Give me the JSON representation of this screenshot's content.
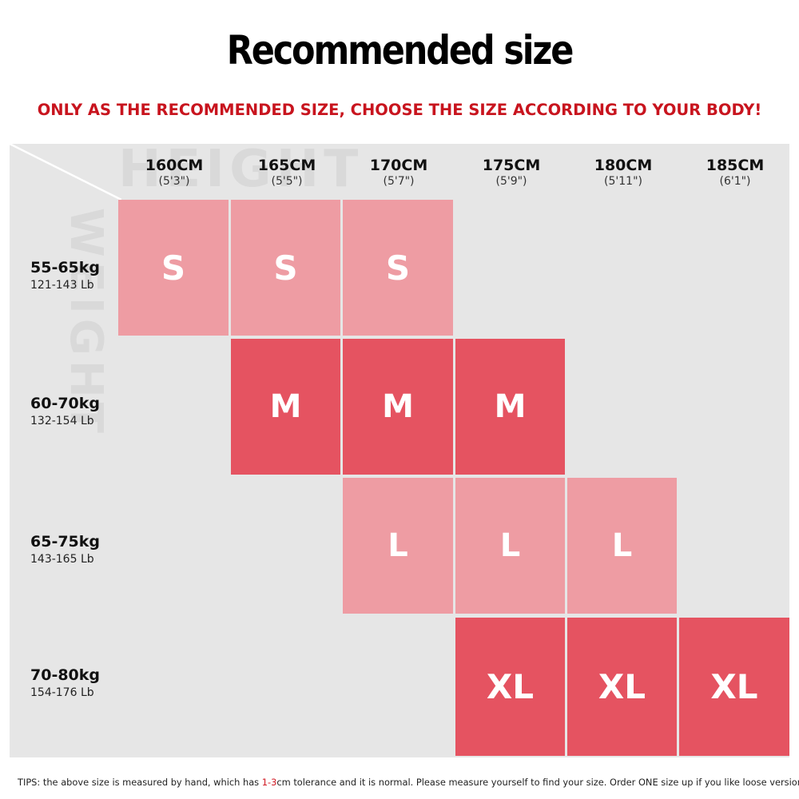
{
  "title": "Recommended size",
  "subtitle": "ONLY AS THE RECOMMENDED SIZE, CHOOSE THE SIZE ACCORDING TO YOUR BODY!",
  "watermarks": {
    "height": "HEIGHT",
    "weight": "WEIGHT"
  },
  "colors": {
    "light": "#ee9ca3",
    "dark": "#e55361",
    "empty": "#e6e6e6",
    "accent": "#c8141e"
  },
  "columns": [
    {
      "cm": "160CM",
      "ft": "(5'3\")"
    },
    {
      "cm": "165CM",
      "ft": "(5'5\")"
    },
    {
      "cm": "170CM",
      "ft": "(5'7\")"
    },
    {
      "cm": "175CM",
      "ft": "(5'9\")"
    },
    {
      "cm": "180CM",
      "ft": "(5'11\")"
    },
    {
      "cm": "185CM",
      "ft": "(6'1\")"
    }
  ],
  "rows": [
    {
      "kg": "55-65kg",
      "lb": "121-143 Lb"
    },
    {
      "kg": "60-70kg",
      "lb": "132-154 Lb"
    },
    {
      "kg": "65-75kg",
      "lb": "143-165 Lb"
    },
    {
      "kg": "70-80kg",
      "lb": "154-176 Lb"
    }
  ],
  "grid": [
    [
      "S",
      "S",
      "S",
      "",
      "",
      ""
    ],
    [
      "",
      "M",
      "M",
      "M",
      "",
      ""
    ],
    [
      "",
      "",
      "L",
      "L",
      "L",
      ""
    ],
    [
      "",
      "",
      "",
      "XL",
      "XL",
      "XL"
    ]
  ],
  "tips": {
    "prefix": "TIPS:  the above size is measured by hand, which has ",
    "highlight": "1-3",
    "suffix": "cm tolerance and it is normal. Please measure yourself to find your size. Order ONE size up if you like loose version."
  }
}
